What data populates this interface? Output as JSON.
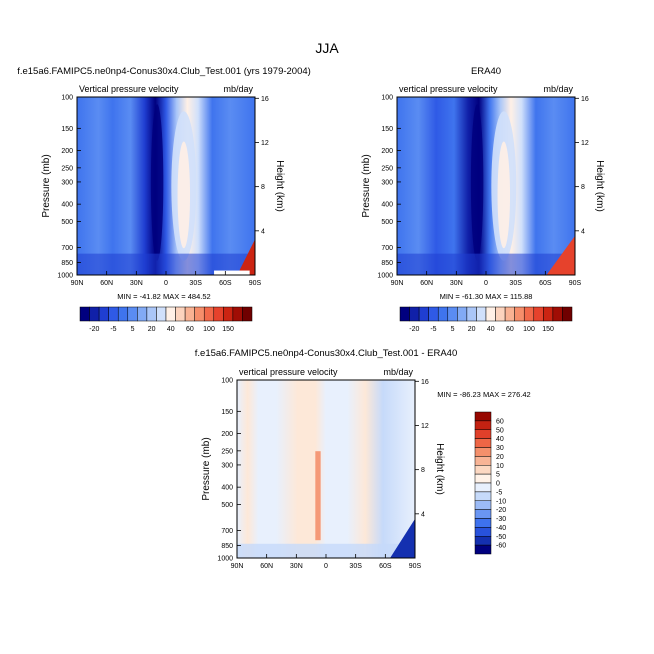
{
  "page_title": "JJA",
  "colors": {
    "scale_abs": [
      "#00007f",
      "#1020a8",
      "#1f3ed1",
      "#2f5ae6",
      "#3f74ee",
      "#5a8cf2",
      "#82aaf5",
      "#aac6f8",
      "#d0e0fb",
      "#fff0e6",
      "#fcd3bd",
      "#f9b293",
      "#f68e6b",
      "#f26849",
      "#e6422c",
      "#cc2412",
      "#a00d05",
      "#700000"
    ],
    "scale_diff": [
      "#00007f",
      "#1430b0",
      "#2852dc",
      "#3e72ee",
      "#6a96f3",
      "#9cbbf6",
      "#c6dafa",
      "#e8f0fd",
      "#fff2e8",
      "#fcd8c2",
      "#f8b496",
      "#f4906c",
      "#ee6646",
      "#e0402a",
      "#c42212",
      "#970700"
    ],
    "field_light": "#e8f0fd",
    "field_warm": "#fde8d8"
  },
  "chart_data": [
    {
      "type": "heatmap",
      "panel": "model",
      "title": "f.e15a6.FAMIPC5.ne0np4-Conus30x4.Club_Test.001 (yrs 1979-2004)",
      "left_label": "Vertical pressure velocity",
      "right_label": "mb/day",
      "ylabel": "Pressure (mb)",
      "ylabel_right": "Height (km)",
      "x_ticks": [
        "90N",
        "60N",
        "30N",
        "0",
        "30S",
        "60S",
        "90S"
      ],
      "x_range": [
        90,
        -90
      ],
      "y_ticks": [
        100,
        150,
        200,
        250,
        300,
        400,
        500,
        700,
        850,
        1000
      ],
      "y_range": [
        100,
        1000
      ],
      "y_scale": "log",
      "height_ticks": [
        4,
        8,
        12,
        16
      ],
      "stats": "MIN = -41.82  MAX = 484.52",
      "colorbar_labels": [
        "-20",
        "-5",
        "5",
        "20",
        "40",
        "60",
        "100",
        "150"
      ],
      "colorbar_orientation": "horizontal",
      "min": -41.82,
      "max": 484.52
    },
    {
      "type": "heatmap",
      "panel": "obs",
      "title": "ERA40",
      "left_label": "vertical pressure velocity",
      "right_label": "mb/day",
      "ylabel": "Pressure (mb)",
      "ylabel_right": "Height (km)",
      "x_ticks": [
        "90N",
        "60N",
        "30N",
        "0",
        "30S",
        "60S",
        "90S"
      ],
      "x_range": [
        90,
        -90
      ],
      "y_ticks": [
        100,
        150,
        200,
        250,
        300,
        400,
        500,
        700,
        850,
        1000
      ],
      "y_range": [
        100,
        1000
      ],
      "y_scale": "log",
      "height_ticks": [
        4,
        8,
        12,
        16
      ],
      "stats": "MIN = -61.30  MAX = 115.88",
      "colorbar_labels": [
        "-20",
        "-5",
        "5",
        "20",
        "40",
        "60",
        "100",
        "150"
      ],
      "colorbar_orientation": "horizontal",
      "min": -61.3,
      "max": 115.88
    },
    {
      "type": "heatmap",
      "panel": "diff",
      "title": "f.e15a6.FAMIPC5.ne0np4-Conus30x4.Club_Test.001 - ERA40",
      "left_label": "vertical pressure velocity",
      "right_label": "mb/day",
      "ylabel": "Pressure (mb)",
      "ylabel_right": "Height (km)",
      "x_ticks": [
        "90N",
        "60N",
        "30N",
        "0",
        "30S",
        "60S",
        "90S"
      ],
      "x_range": [
        90,
        -90
      ],
      "y_ticks": [
        100,
        150,
        200,
        250,
        300,
        400,
        500,
        700,
        850,
        1000
      ],
      "y_range": [
        100,
        1000
      ],
      "y_scale": "log",
      "height_ticks": [
        4,
        8,
        12,
        16
      ],
      "stats": "MIN = -86.23  MAX = 276.42",
      "colorbar_labels": [
        "60",
        "50",
        "40",
        "30",
        "20",
        "10",
        "5",
        "0",
        "-5",
        "-10",
        "-20",
        "-30",
        "-40",
        "-50",
        "-60"
      ],
      "colorbar_orientation": "vertical",
      "min": -86.23,
      "max": 276.42
    }
  ]
}
